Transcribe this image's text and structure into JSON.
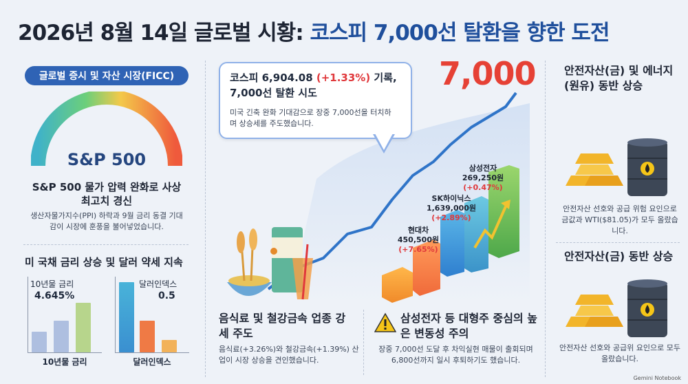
{
  "title": {
    "main": "2026년 8월 14일 글로벌 시황: ",
    "highlight": "코스피 7,000선 탈환을 향한 도전"
  },
  "left": {
    "pill_label": "글로벌 증시 및 자산 시장(FICC)",
    "gauge_label": "S&P 500",
    "sp_heading": "S&P 500 물가 압력 완화로 사상 최고치 경신",
    "sp_body": "생산자물가지수(PPI) 하락과 9월 금리 동결 기대감이 시장에 훈풍을 불어넣었습니다.",
    "rates_heading": "미 국채 금리 상승 및 달러 약세 지속",
    "bond": {
      "label": "10년물 금리",
      "value": "4.645%",
      "axis_label": "10년물 금리"
    },
    "dollar": {
      "label": "달러인덱스",
      "value": "0.5",
      "axis_label": "달러인덱스"
    }
  },
  "center": {
    "bubble_title_a": "코스피 6,904.08 ",
    "bubble_title_pct": "(+1.33%)",
    "bubble_title_b": " 기록,",
    "bubble_title_c": "7,000선 탈환 시도",
    "bubble_body": "미국 긴축 완화 기대감으로 장중 7,000선을 터치하며 상승세를 주도했습니다.",
    "target": "7,000",
    "stocks": [
      {
        "name": "삼성전자",
        "price": "269,250원",
        "pct": "(+0.47%)"
      },
      {
        "name": "SK하이닉스",
        "price": "1,639,000원",
        "pct": "(+2.89%)"
      },
      {
        "name": "현대차",
        "price": "450,500원",
        "pct": "(+7.65%)"
      }
    ],
    "food_heading": "음식료 및 철강금속 업종 강세 주도",
    "food_body": "음식료(+3.26%)와 철강금속(+1.39%) 산업이 시장 상승을 견인했습니다.",
    "vol_heading": "삼성전자 등 대형주 중심의 높은 변동성 주의",
    "vol_body": "장중 7,000선 도달 후 차익실현 매물이 출회되며 6,800선까지 일시 후퇴하기도 했습니다."
  },
  "right": {
    "block1_heading": "안전자산(금) 및 에너지(원유) 동반 상승",
    "block1_body": "안전자산 선호와 공급 위험 요인으로 금값과 WTI($81.05)가 모두 올랐습니다.",
    "block2_heading": "안전자산(금) 동반 상승",
    "block2_body": "안전자산 선호와 공급위 요인으로 모두 올랐습니다."
  },
  "footer": "Gemini Notebook",
  "colors": {
    "accent": "#2f63b5",
    "red": "#e0383b",
    "target": "#e64135"
  }
}
